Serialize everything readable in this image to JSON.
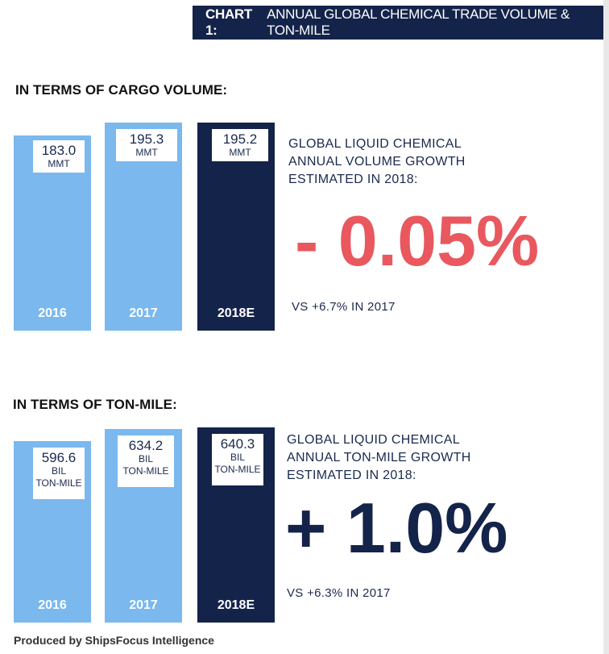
{
  "header": {
    "number": "CHART 1:",
    "title": "ANNUAL GLOBAL CHEMICAL TRADE VOLUME & TON-MILE"
  },
  "colors": {
    "light_bar": "#7ab8ee",
    "dark_bar": "#14234a",
    "negative": "#e8585e",
    "text": "#1b2a4e"
  },
  "chart_data": [
    {
      "type": "bar",
      "title": "IN TERMS OF CARGO VOLUME:",
      "categories": [
        "2016",
        "2017",
        "2018E"
      ],
      "values": [
        183.0,
        195.3,
        195.2
      ],
      "value_labels": [
        "183.0",
        "195.3",
        "195.2"
      ],
      "unit_labels": [
        "MMT",
        "MMT",
        "MMT"
      ],
      "ylim": [
        0,
        195.3
      ],
      "highlight": "2018E",
      "annotation": {
        "lines": [
          "GLOBAL LIQUID CHEMICAL",
          "ANNUAL VOLUME GROWTH",
          "ESTIMATED IN 2018:"
        ],
        "big_value": "- 0.05%",
        "comparison": "VS +6.7% IN 2017"
      }
    },
    {
      "type": "bar",
      "title": "IN TERMS OF TON-MILE:",
      "categories": [
        "2016",
        "2017",
        "2018E"
      ],
      "values": [
        596.6,
        634.2,
        640.3
      ],
      "value_labels": [
        "596.6",
        "634.2",
        "640.3"
      ],
      "unit_labels": [
        [
          "BIL",
          "TON-MILE"
        ],
        [
          "BIL",
          "TON-MILE"
        ],
        [
          "BIL",
          "TON-MILE"
        ]
      ],
      "ylim": [
        0,
        640.3
      ],
      "highlight": "2018E",
      "annotation": {
        "lines": [
          "GLOBAL LIQUID CHEMICAL",
          "ANNUAL TON-MILE GROWTH",
          "ESTIMATED IN 2018:"
        ],
        "big_value": "+ 1.0%",
        "comparison": "VS +6.3% IN 2017"
      }
    }
  ],
  "footer": "Produced by ShipsFocus Intelligence"
}
